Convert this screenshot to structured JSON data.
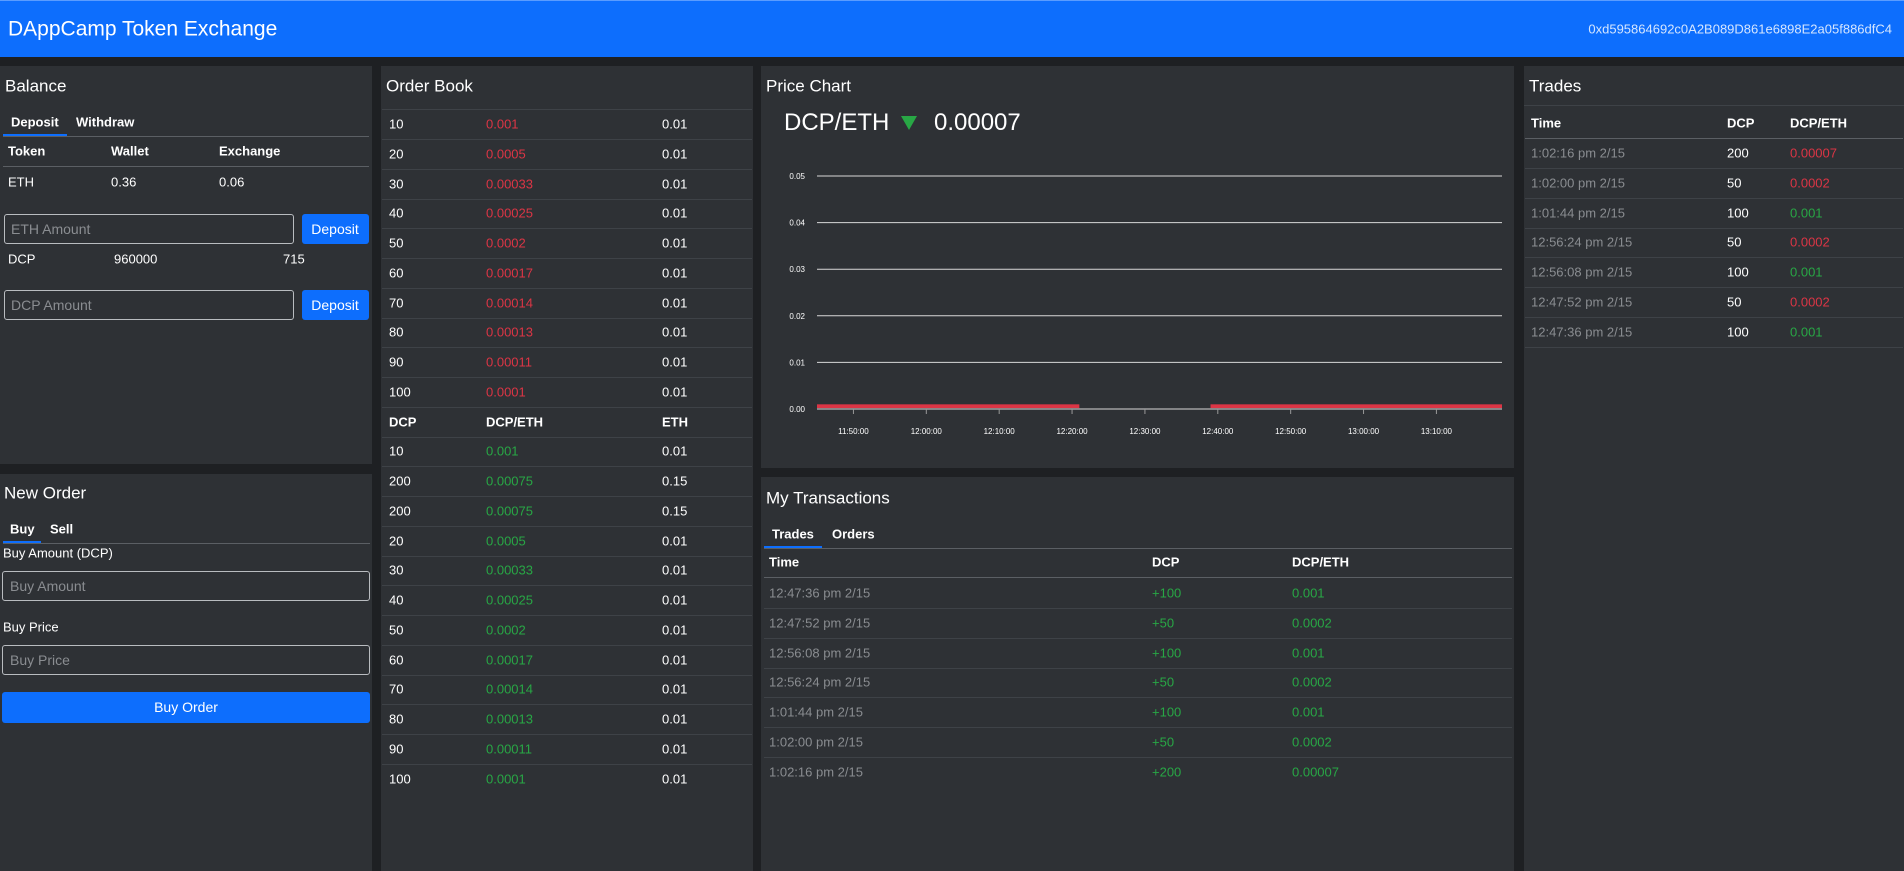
{
  "header": {
    "title": "DAppCamp Token Exchange",
    "account": "0xd595864692c0A2B089D861e6898E2a05f886dfC4"
  },
  "balance": {
    "title": "Balance",
    "tabs": [
      "Deposit",
      "Withdraw"
    ],
    "columns": [
      "Token",
      "Wallet",
      "Exchange"
    ],
    "eth": {
      "token": "ETH",
      "wallet": "0.36",
      "exchange": "0.06",
      "placeholder": "ETH Amount",
      "button": "Deposit"
    },
    "dcp": {
      "token": "DCP",
      "wallet": "960000",
      "exchange": "715",
      "placeholder": "DCP Amount",
      "button": "Deposit"
    }
  },
  "new_order": {
    "title": "New Order",
    "tabs": [
      "Buy",
      "Sell"
    ],
    "amount_label": "Buy Amount (DCP)",
    "amount_placeholder": "Buy Amount",
    "price_label": "Buy Price",
    "price_placeholder": "Buy Price",
    "button": "Buy Order"
  },
  "order_book": {
    "title": "Order Book",
    "sell_color": "#dc3545",
    "buy_color": "#28a745",
    "sell_rows": [
      [
        "10",
        "0.001",
        "0.01"
      ],
      [
        "20",
        "0.0005",
        "0.01"
      ],
      [
        "30",
        "0.00033",
        "0.01"
      ],
      [
        "40",
        "0.00025",
        "0.01"
      ],
      [
        "50",
        "0.0002",
        "0.01"
      ],
      [
        "60",
        "0.00017",
        "0.01"
      ],
      [
        "70",
        "0.00014",
        "0.01"
      ],
      [
        "80",
        "0.00013",
        "0.01"
      ],
      [
        "90",
        "0.00011",
        "0.01"
      ],
      [
        "100",
        "0.0001",
        "0.01"
      ]
    ],
    "columns": [
      "DCP",
      "DCP/ETH",
      "ETH"
    ],
    "buy_rows": [
      [
        "10",
        "0.001",
        "0.01"
      ],
      [
        "200",
        "0.00075",
        "0.15"
      ],
      [
        "200",
        "0.00075",
        "0.15"
      ],
      [
        "20",
        "0.0005",
        "0.01"
      ],
      [
        "30",
        "0.00033",
        "0.01"
      ],
      [
        "40",
        "0.00025",
        "0.01"
      ],
      [
        "50",
        "0.0002",
        "0.01"
      ],
      [
        "60",
        "0.00017",
        "0.01"
      ],
      [
        "70",
        "0.00014",
        "0.01"
      ],
      [
        "80",
        "0.00013",
        "0.01"
      ],
      [
        "90",
        "0.00011",
        "0.01"
      ],
      [
        "100",
        "0.0001",
        "0.01"
      ]
    ]
  },
  "price_chart": {
    "title": "Price Chart",
    "pair": "DCP/ETH",
    "last_price": "0.00007",
    "trend_color": "#28a745",
    "chart_data": {
      "type": "candlestick",
      "color": "#dc3545",
      "grid": true,
      "x_start": [
        705,
        759
      ],
      "x_end": [
        741,
        799
      ],
      "open": [
        0.001,
        0.001
      ],
      "close": [
        0.0002,
        0.0002
      ],
      "xlim": [
        705,
        799
      ],
      "xticks": [
        {
          "value": 710,
          "label": "11:50:00"
        },
        {
          "value": 720,
          "label": "12:00:00"
        },
        {
          "value": 730,
          "label": "12:10:00"
        },
        {
          "value": 740,
          "label": "12:20:00"
        },
        {
          "value": 750,
          "label": "12:30:00"
        },
        {
          "value": 760,
          "label": "12:40:00"
        },
        {
          "value": 770,
          "label": "12:50:00"
        },
        {
          "value": 780,
          "label": "13:00:00"
        },
        {
          "value": 790,
          "label": "13:10:00"
        }
      ],
      "ylim": [
        0,
        0.05
      ],
      "yticks": [
        {
          "value": 0,
          "label": "0.00"
        },
        {
          "value": 0.01,
          "label": "0.01"
        },
        {
          "value": 0.02,
          "label": "0.02"
        },
        {
          "value": 0.03,
          "label": "0.03"
        },
        {
          "value": 0.04,
          "label": "0.04"
        },
        {
          "value": 0.05,
          "label": "0.05"
        }
      ]
    }
  },
  "my_transactions": {
    "title": "My Transactions",
    "tabs": [
      "Trades",
      "Orders"
    ],
    "columns": [
      "Time",
      "DCP",
      "DCP/ETH"
    ],
    "color": "#28a745",
    "rows": [
      [
        "12:47:36 pm 2/15",
        "+100",
        "0.001"
      ],
      [
        "12:47:52 pm 2/15",
        "+50",
        "0.0002"
      ],
      [
        "12:56:08 pm 2/15",
        "+100",
        "0.001"
      ],
      [
        "12:56:24 pm 2/15",
        "+50",
        "0.0002"
      ],
      [
        "1:01:44 pm 2/15",
        "+100",
        "0.001"
      ],
      [
        "1:02:00 pm 2/15",
        "+50",
        "0.0002"
      ],
      [
        "1:02:16 pm 2/15",
        "+200",
        "0.00007"
      ]
    ]
  },
  "trades": {
    "title": "Trades",
    "columns": [
      "Time",
      "DCP",
      "DCP/ETH"
    ],
    "rows": [
      [
        "1:02:16 pm 2/15",
        "200",
        "0.00007"
      ],
      [
        "1:02:00 pm 2/15",
        "50",
        "0.0002"
      ],
      [
        "1:01:44 pm 2/15",
        "100",
        "0.001"
      ],
      [
        "12:56:24 pm 2/15",
        "50",
        "0.0002"
      ],
      [
        "12:56:08 pm 2/15",
        "100",
        "0.001"
      ],
      [
        "12:47:52 pm 2/15",
        "50",
        "0.0002"
      ],
      [
        "12:47:36 pm 2/15",
        "100",
        "0.001"
      ]
    ],
    "colors": [
      "#dc3545",
      "#dc3545",
      "#28a745",
      "#dc3545",
      "#28a745",
      "#dc3545",
      "#28a745"
    ]
  }
}
